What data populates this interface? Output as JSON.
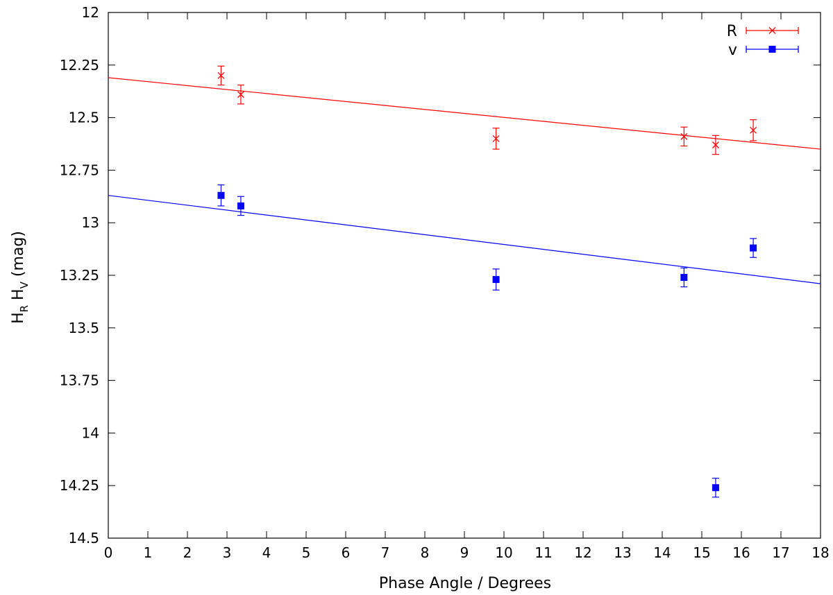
{
  "chart_data": {
    "type": "scatter",
    "xlabel": "Phase Angle / Degrees",
    "ylabel": {
      "main1": "H",
      "sub1": "R",
      "main2": " H",
      "sub2": "V",
      "rest": " (mag)"
    },
    "xlim": [
      0,
      18
    ],
    "ylim": [
      12,
      14.5
    ],
    "y_inverted": true,
    "x_ticks": [
      0,
      1,
      2,
      3,
      4,
      5,
      6,
      7,
      8,
      9,
      10,
      11,
      12,
      13,
      14,
      15,
      16,
      17,
      18
    ],
    "y_ticks": [
      "12",
      "12.25",
      "12.5",
      "12.75",
      "13",
      "13.25",
      "13.5",
      "13.75",
      "14",
      "14.25",
      "14.5"
    ],
    "grid": false,
    "legend_position": "top-right",
    "series": [
      {
        "name": "R",
        "color": "#ff0000",
        "marker": "cross",
        "points": [
          {
            "x": 2.85,
            "y": 12.3,
            "err": 0.045
          },
          {
            "x": 3.35,
            "y": 12.39,
            "err": 0.045
          },
          {
            "x": 9.8,
            "y": 12.6,
            "err": 0.05
          },
          {
            "x": 14.55,
            "y": 12.59,
            "err": 0.045
          },
          {
            "x": 15.35,
            "y": 12.63,
            "err": 0.045
          },
          {
            "x": 16.3,
            "y": 12.56,
            "err": 0.05
          }
        ],
        "fit": {
          "x": [
            0,
            18
          ],
          "y": [
            12.31,
            12.65
          ]
        }
      },
      {
        "name": "v",
        "color": "#0000ff",
        "marker": "square",
        "points": [
          {
            "x": 2.85,
            "y": 12.87,
            "err": 0.05
          },
          {
            "x": 3.35,
            "y": 12.92,
            "err": 0.045
          },
          {
            "x": 9.8,
            "y": 13.27,
            "err": 0.05
          },
          {
            "x": 14.55,
            "y": 13.26,
            "err": 0.045
          },
          {
            "x": 16.3,
            "y": 13.12,
            "err": 0.045
          },
          {
            "x": 15.35,
            "y": 14.26,
            "err": 0.045
          }
        ],
        "fit": {
          "x": [
            0,
            18
          ],
          "y": [
            12.87,
            13.29
          ]
        }
      }
    ]
  }
}
